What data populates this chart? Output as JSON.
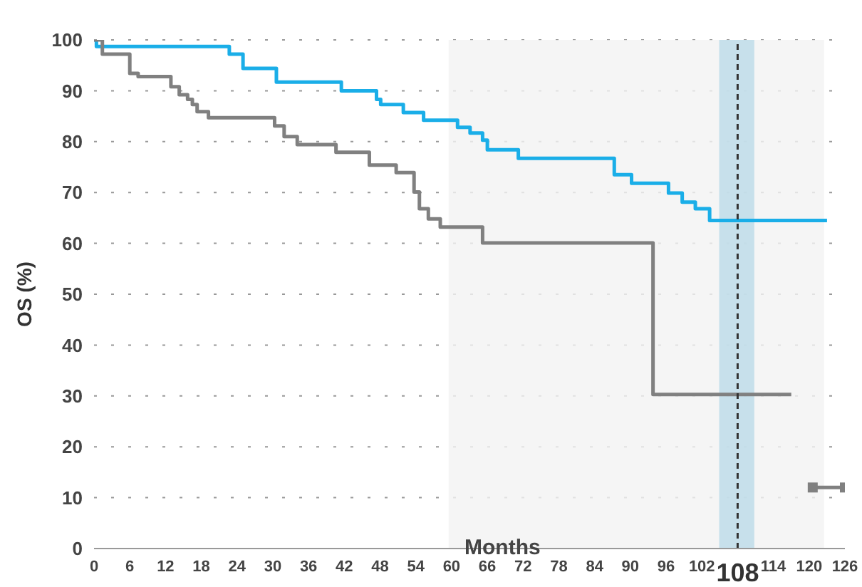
{
  "chart_data": {
    "type": "step",
    "xlabel": "Months",
    "ylabel": "OS (%)",
    "xlim": [
      0,
      126
    ],
    "xticks": [
      0,
      6,
      12,
      18,
      24,
      30,
      36,
      42,
      48,
      54,
      60,
      66,
      72,
      78,
      84,
      90,
      96,
      102,
      114,
      120,
      126
    ],
    "ylim": [
      0,
      100
    ],
    "yticks": [
      0,
      10,
      20,
      30,
      40,
      50,
      60,
      70,
      80,
      90,
      100
    ],
    "grid": "y",
    "legend": false,
    "marker": "none",
    "series": [
      {
        "color": "#1aaee8",
        "x": [
          0,
          0.4,
          22.7,
          25.0,
          30.6,
          41.5,
          47.4,
          48.1,
          51.9,
          55.3,
          61,
          63.1,
          65.2,
          66,
          71.2,
          87.3,
          90.2,
          96.4,
          98.7,
          100.9,
          103.3,
          123
        ],
        "values": [
          100,
          98.7,
          97.2,
          94.4,
          91.7,
          90,
          88.3,
          87.3,
          85.7,
          84.2,
          82.8,
          81.7,
          80.3,
          78.4,
          76.7,
          73.5,
          71.8,
          69.9,
          68.1,
          66.8,
          64.5,
          64.5
        ]
      },
      {
        "color": "#808080",
        "x": [
          0,
          1.4,
          6.0,
          7.4,
          12.9,
          14.3,
          15.7,
          16.5,
          17.3,
          19.2,
          30.3,
          31.9,
          34.1,
          40.6,
          46.2,
          50.7,
          53.7,
          54.6,
          56.1,
          58.1,
          65.2,
          93.8,
          117
        ],
        "values": [
          100,
          97.2,
          93.4,
          92.8,
          90.8,
          89.2,
          88.3,
          87.3,
          85.9,
          84.7,
          83.1,
          81,
          79.4,
          77.9,
          75.4,
          73.9,
          70.1,
          66.8,
          64.8,
          63.2,
          60.1,
          30.3,
          30.3
        ]
      },
      {
        "color": "#808080",
        "marker": "square",
        "x": [
          120.6,
          126
        ],
        "values": [
          12,
          12
        ]
      }
    ],
    "ref_lines": [
      {
        "axis": "x",
        "value": 108,
        "label": "108",
        "color": "#333333",
        "line_style": "dashed"
      }
    ],
    "bands": [
      {
        "axis": "x",
        "from": 59.5,
        "to": 122.5,
        "color": "#f2f2f2"
      },
      {
        "axis": "x",
        "from": 104.9,
        "to": 110.8,
        "color": "#bcdbe8"
      }
    ]
  }
}
